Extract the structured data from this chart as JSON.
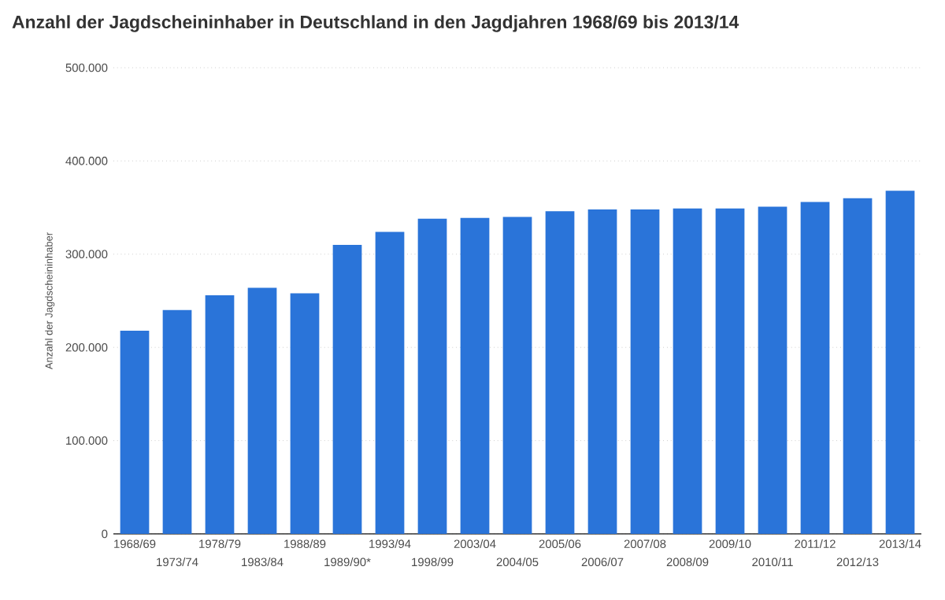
{
  "chart_data": {
    "type": "bar",
    "title": "Anzahl der Jagdscheininhaber in Deutschland in den Jagdjahren 1968/69 bis 2013/14",
    "ylabel": "Anzahl der Jagdscheininhaber",
    "categories": [
      "1968/69",
      "1973/74",
      "1978/79",
      "1983/84",
      "1988/89",
      "1989/90*",
      "1993/94",
      "1998/99",
      "2003/04",
      "2004/05",
      "2005/06",
      "2006/07",
      "2007/08",
      "2008/09",
      "2009/10",
      "2010/11",
      "2011/12",
      "2012/13",
      "2013/14"
    ],
    "values": [
      218000,
      240000,
      256000,
      264000,
      258000,
      310000,
      324000,
      338000,
      339000,
      340000,
      346000,
      348000,
      348000,
      349000,
      349000,
      351000,
      356000,
      360000,
      368000
    ],
    "color": "#2a74d9",
    "ylim": [
      0,
      500000
    ],
    "yticks": [
      {
        "value": 0,
        "label": "0"
      },
      {
        "value": 100000,
        "label": "100.000"
      },
      {
        "value": 200000,
        "label": "200.000"
      },
      {
        "value": 300000,
        "label": "300.000"
      },
      {
        "value": 400000,
        "label": "400.000"
      },
      {
        "value": 500000,
        "label": "500.000"
      }
    ],
    "grid": "y"
  }
}
